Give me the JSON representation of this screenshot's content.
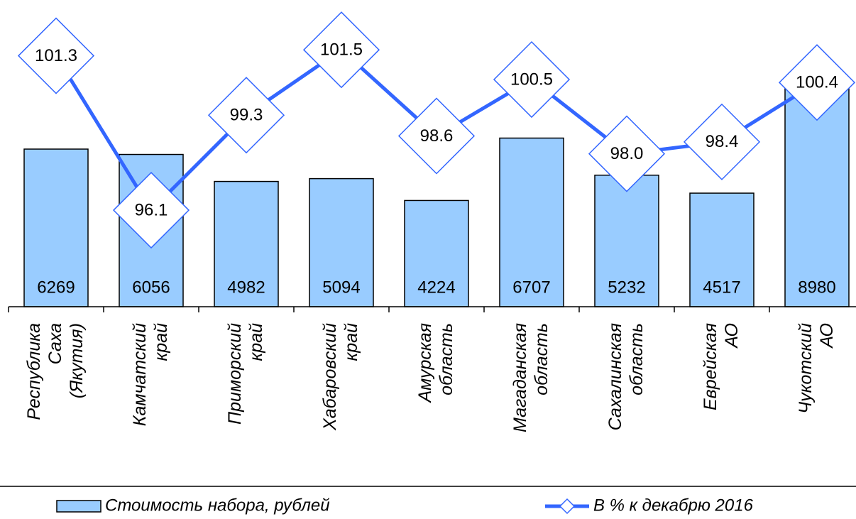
{
  "chart_data": {
    "type": "bar_line",
    "categories": [
      "Республика Саха (Якутия)",
      "Камчатский край",
      "Приморский край",
      "Хабаровский край",
      "Амурская область",
      "Магаданская область",
      "Сахалинская область",
      "Еврейская АО",
      "Чукотский АО"
    ],
    "series": [
      {
        "name": "Стоимость набора, рублей",
        "type": "bar",
        "color": "#99ccff",
        "values": [
          6269,
          6056,
          4982,
          5094,
          4224,
          6707,
          5232,
          4517,
          8980
        ]
      },
      {
        "name": "В % к декабрю 2016",
        "type": "line",
        "axis": "y2",
        "color": "#3366ff",
        "values": [
          101.3,
          96.1,
          99.3,
          101.5,
          98.6,
          100.5,
          98,
          98.4,
          100.4
        ],
        "value_labels": [
          "101.3",
          "96.1",
          "99.3",
          "101.5",
          "98.6",
          "100.5",
          "98.0",
          "98.4",
          "100.4"
        ]
      }
    ],
    "ylim": [
      0,
      11634
    ],
    "y2lim": [
      92.85,
      102.7
    ],
    "legend": "bottom"
  }
}
